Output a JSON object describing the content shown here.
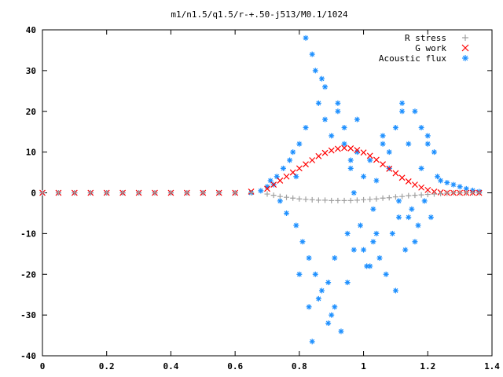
{
  "chart_data": {
    "type": "scatter",
    "title": "m1/n1.5/q1.5/r-+.50-j513/M0.1/1024",
    "xlabel": "",
    "ylabel": "",
    "xlim": [
      0,
      1.4
    ],
    "ylim": [
      -40,
      40
    ],
    "xticks": [
      "0",
      "0.2",
      "0.4",
      "0.6",
      "0.8",
      "1",
      "1.2",
      "1.4"
    ],
    "yticks": [
      "40",
      "30",
      "20",
      "10",
      "0",
      "-10",
      "-20",
      "-30",
      "-40"
    ],
    "grid": false,
    "legend_position": "top-right",
    "series": [
      {
        "name": "R stress",
        "marker": "plus",
        "color": "#a0a0a0",
        "x": [
          0.0,
          0.05,
          0.1,
          0.15,
          0.2,
          0.25,
          0.3,
          0.35,
          0.4,
          0.45,
          0.5,
          0.55,
          0.6,
          0.65,
          0.7,
          0.72,
          0.74,
          0.76,
          0.78,
          0.8,
          0.82,
          0.84,
          0.86,
          0.88,
          0.9,
          0.92,
          0.94,
          0.96,
          0.98,
          1.0,
          1.02,
          1.04,
          1.06,
          1.08,
          1.1,
          1.12,
          1.14,
          1.16,
          1.18,
          1.2,
          1.22,
          1.24,
          1.26,
          1.28,
          1.3,
          1.32,
          1.34,
          1.36
        ],
        "y": [
          0,
          0,
          0,
          0,
          0,
          0,
          0,
          0,
          0,
          0,
          0,
          0,
          0,
          0,
          -0.3,
          -0.6,
          -0.9,
          -1.1,
          -1.3,
          -1.5,
          -1.6,
          -1.7,
          -1.8,
          -1.8,
          -1.9,
          -1.9,
          -1.9,
          -1.9,
          -1.8,
          -1.7,
          -1.6,
          -1.5,
          -1.3,
          -1.2,
          -1.0,
          -0.9,
          -0.7,
          -0.6,
          -0.5,
          -0.4,
          -0.3,
          -0.2,
          -0.1,
          0,
          0,
          0,
          0,
          0
        ]
      },
      {
        "name": "G work",
        "marker": "cross",
        "color": "#ff0000",
        "x": [
          0.0,
          0.05,
          0.1,
          0.15,
          0.2,
          0.25,
          0.3,
          0.35,
          0.4,
          0.45,
          0.5,
          0.55,
          0.6,
          0.65,
          0.7,
          0.72,
          0.74,
          0.76,
          0.78,
          0.8,
          0.82,
          0.84,
          0.86,
          0.88,
          0.9,
          0.92,
          0.94,
          0.96,
          0.98,
          1.0,
          1.02,
          1.04,
          1.06,
          1.08,
          1.1,
          1.12,
          1.14,
          1.16,
          1.18,
          1.2,
          1.22,
          1.24,
          1.26,
          1.28,
          1.3,
          1.32,
          1.34,
          1.36
        ],
        "y": [
          0,
          0,
          0,
          0,
          0,
          0,
          0,
          0,
          0,
          0,
          0,
          0,
          0,
          0.3,
          1.0,
          2.0,
          3.0,
          4.0,
          5.0,
          6.0,
          7.0,
          8.0,
          9.0,
          9.8,
          10.4,
          10.8,
          11.0,
          10.9,
          10.5,
          9.9,
          9.1,
          8.1,
          7.0,
          5.9,
          4.8,
          3.7,
          2.8,
          2.0,
          1.3,
          0.7,
          0.3,
          0.1,
          0,
          0,
          0,
          0,
          0,
          0
        ]
      },
      {
        "name": "Acoustic flux",
        "marker": "star",
        "color": "#1e90ff",
        "x": [
          0.0,
          0.05,
          0.1,
          0.15,
          0.2,
          0.25,
          0.3,
          0.35,
          0.4,
          0.45,
          0.5,
          0.55,
          0.6,
          0.65,
          0.68,
          0.7,
          0.71,
          0.72,
          0.73,
          0.74,
          0.75,
          0.76,
          0.77,
          0.78,
          0.79,
          0.8,
          0.81,
          0.82,
          0.83,
          0.84,
          0.85,
          0.86,
          0.87,
          0.88,
          0.89,
          0.9,
          0.91,
          0.92,
          0.93,
          0.94,
          0.95,
          0.96,
          0.97,
          0.98,
          0.99,
          1.0,
          1.01,
          1.02,
          1.03,
          1.04,
          1.05,
          1.06,
          1.07,
          1.08,
          1.09,
          1.1,
          1.11,
          1.12,
          1.13,
          1.14,
          1.15,
          1.16,
          1.17,
          1.18,
          1.19,
          1.2,
          1.21,
          1.22,
          1.23,
          1.24,
          1.26,
          1.28,
          1.3,
          1.32,
          1.34,
          1.36,
          0.82,
          0.84,
          0.85,
          0.88,
          0.9,
          0.92,
          0.95,
          0.98,
          1.02,
          1.06,
          1.1,
          1.12,
          1.16,
          1.2,
          0.8,
          0.86,
          0.94,
          1.0,
          1.08,
          1.14,
          0.83,
          0.87,
          0.91,
          0.96,
          1.04,
          1.18,
          0.79,
          0.89,
          0.97,
          1.03,
          1.11
        ],
        "y": [
          0,
          0,
          0,
          0,
          0,
          0,
          0,
          0,
          0,
          0,
          0,
          0,
          0,
          0,
          0.5,
          1.5,
          3.0,
          2.0,
          4.0,
          -2.0,
          6.0,
          -5.0,
          8.0,
          10.0,
          -8.0,
          12.0,
          -12.0,
          16.0,
          -16.0,
          34.0,
          -20.0,
          22.0,
          -24.0,
          18.0,
          -32.0,
          14.0,
          -28.0,
          20.0,
          -34.0,
          12.0,
          -10.0,
          6.0,
          -14.0,
          10.0,
          -8.0,
          4.0,
          -18.0,
          8.0,
          -12.0,
          3.0,
          -16.0,
          12.0,
          -20.0,
          6.0,
          -10.0,
          16.0,
          -6.0,
          22.0,
          -14.0,
          12.0,
          -4.0,
          20.0,
          -8.0,
          16.0,
          -2.0,
          14.0,
          -6.0,
          10.0,
          4.0,
          3.0,
          2.5,
          2.0,
          1.5,
          1.0,
          0.6,
          0.3,
          38.0,
          -36.5,
          30.0,
          26.0,
          -30.0,
          22.0,
          -22.0,
          18.0,
          -18.0,
          14.0,
          -24.0,
          20.0,
          -12.0,
          12.0,
          -20.0,
          -26.0,
          16.0,
          -14.0,
          10.0,
          -6.0,
          -28.0,
          28.0,
          -16.0,
          8.0,
          -10.0,
          6.0,
          4.0,
          -22.0,
          0.0,
          -4.0,
          -2.0
        ]
      }
    ]
  }
}
